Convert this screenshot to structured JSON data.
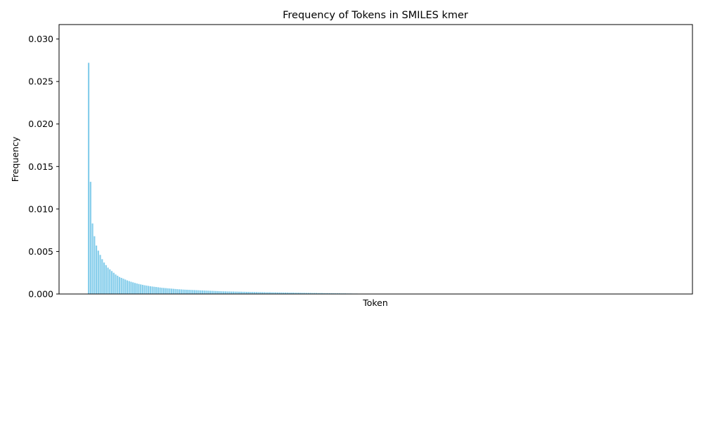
{
  "chart_data": {
    "type": "bar",
    "title": "Frequency of Tokens in SMILES kmer",
    "xlabel": "Token",
    "ylabel": "Frequency",
    "ylim": [
      0,
      0.0317
    ],
    "yticks": [
      "0.000",
      "0.005",
      "0.010",
      "0.015",
      "0.020",
      "0.025",
      "0.030"
    ],
    "ytick_values": [
      0,
      0.005,
      0.01,
      0.015,
      0.02,
      0.025,
      0.03
    ],
    "x_tick_labels_visible": false,
    "grid": false,
    "bar_color": "#87CEEB",
    "values": [
      0.0272,
      0.0132,
      0.0083,
      0.0068,
      0.0057,
      0.0051,
      0.0046,
      0.0041,
      0.0037,
      0.0034,
      0.0031,
      0.0029,
      0.0027,
      0.0025,
      0.0023,
      0.00215,
      0.002,
      0.0019,
      0.0018,
      0.0017,
      0.0016,
      0.00152,
      0.00144,
      0.00137,
      0.0013,
      0.00124,
      0.00118,
      0.00113,
      0.00108,
      0.00103,
      0.00099,
      0.00095,
      0.00091,
      0.00088,
      0.00085,
      0.00082,
      0.00079,
      0.00076,
      0.00073,
      0.00071,
      0.00069,
      0.00067,
      0.00065,
      0.00063,
      0.00061,
      0.00059,
      0.00057,
      0.00055,
      0.00054,
      0.00052,
      0.00051,
      0.0005,
      0.00049,
      0.00048,
      0.00047,
      0.00046,
      0.00045,
      0.00044,
      0.00043,
      0.00042,
      0.00041,
      0.0004,
      0.00039,
      0.00038,
      0.00037,
      0.00036,
      0.00035,
      0.00034,
      0.00033,
      0.00032,
      0.00031,
      0.00031,
      0.0003,
      0.0003,
      0.00029,
      0.00029,
      0.00028,
      0.00028,
      0.00027,
      0.00027,
      0.00026,
      0.00026,
      0.00025,
      0.00025,
      0.00024,
      0.00024,
      0.00023,
      0.00023,
      0.00022,
      0.00022,
      0.00021,
      0.00021,
      0.0002,
      0.0002,
      0.0002,
      0.00019,
      0.00019,
      0.00019,
      0.00018,
      0.00018,
      0.00018,
      0.00017,
      0.00017,
      0.00017,
      0.00016,
      0.00016,
      0.00016,
      0.00015,
      0.00015,
      0.00015,
      0.00014,
      0.00014,
      0.00014,
      0.00013,
      0.00013,
      0.00013,
      0.00012,
      0.00012,
      0.00012,
      0.00011,
      0.00011,
      0.00011,
      0.0001,
      0.0001,
      0.0001,
      9e-05,
      9e-05,
      9e-05,
      8e-05,
      8e-05,
      8e-05,
      7e-05,
      7e-05,
      7e-05,
      6e-05,
      6e-05,
      6e-05,
      5e-05,
      5e-05,
      5e-05,
      4e-05,
      4e-05,
      4e-05,
      3e-05,
      3e-05,
      3e-05,
      3e-05,
      2e-05,
      2e-05,
      2e-05,
      2e-05,
      2e-05,
      1e-05,
      1e-05,
      1e-05,
      1e-05,
      1e-05,
      1e-05,
      1e-05,
      1e-05
    ],
    "x_slot_count": 350
  }
}
